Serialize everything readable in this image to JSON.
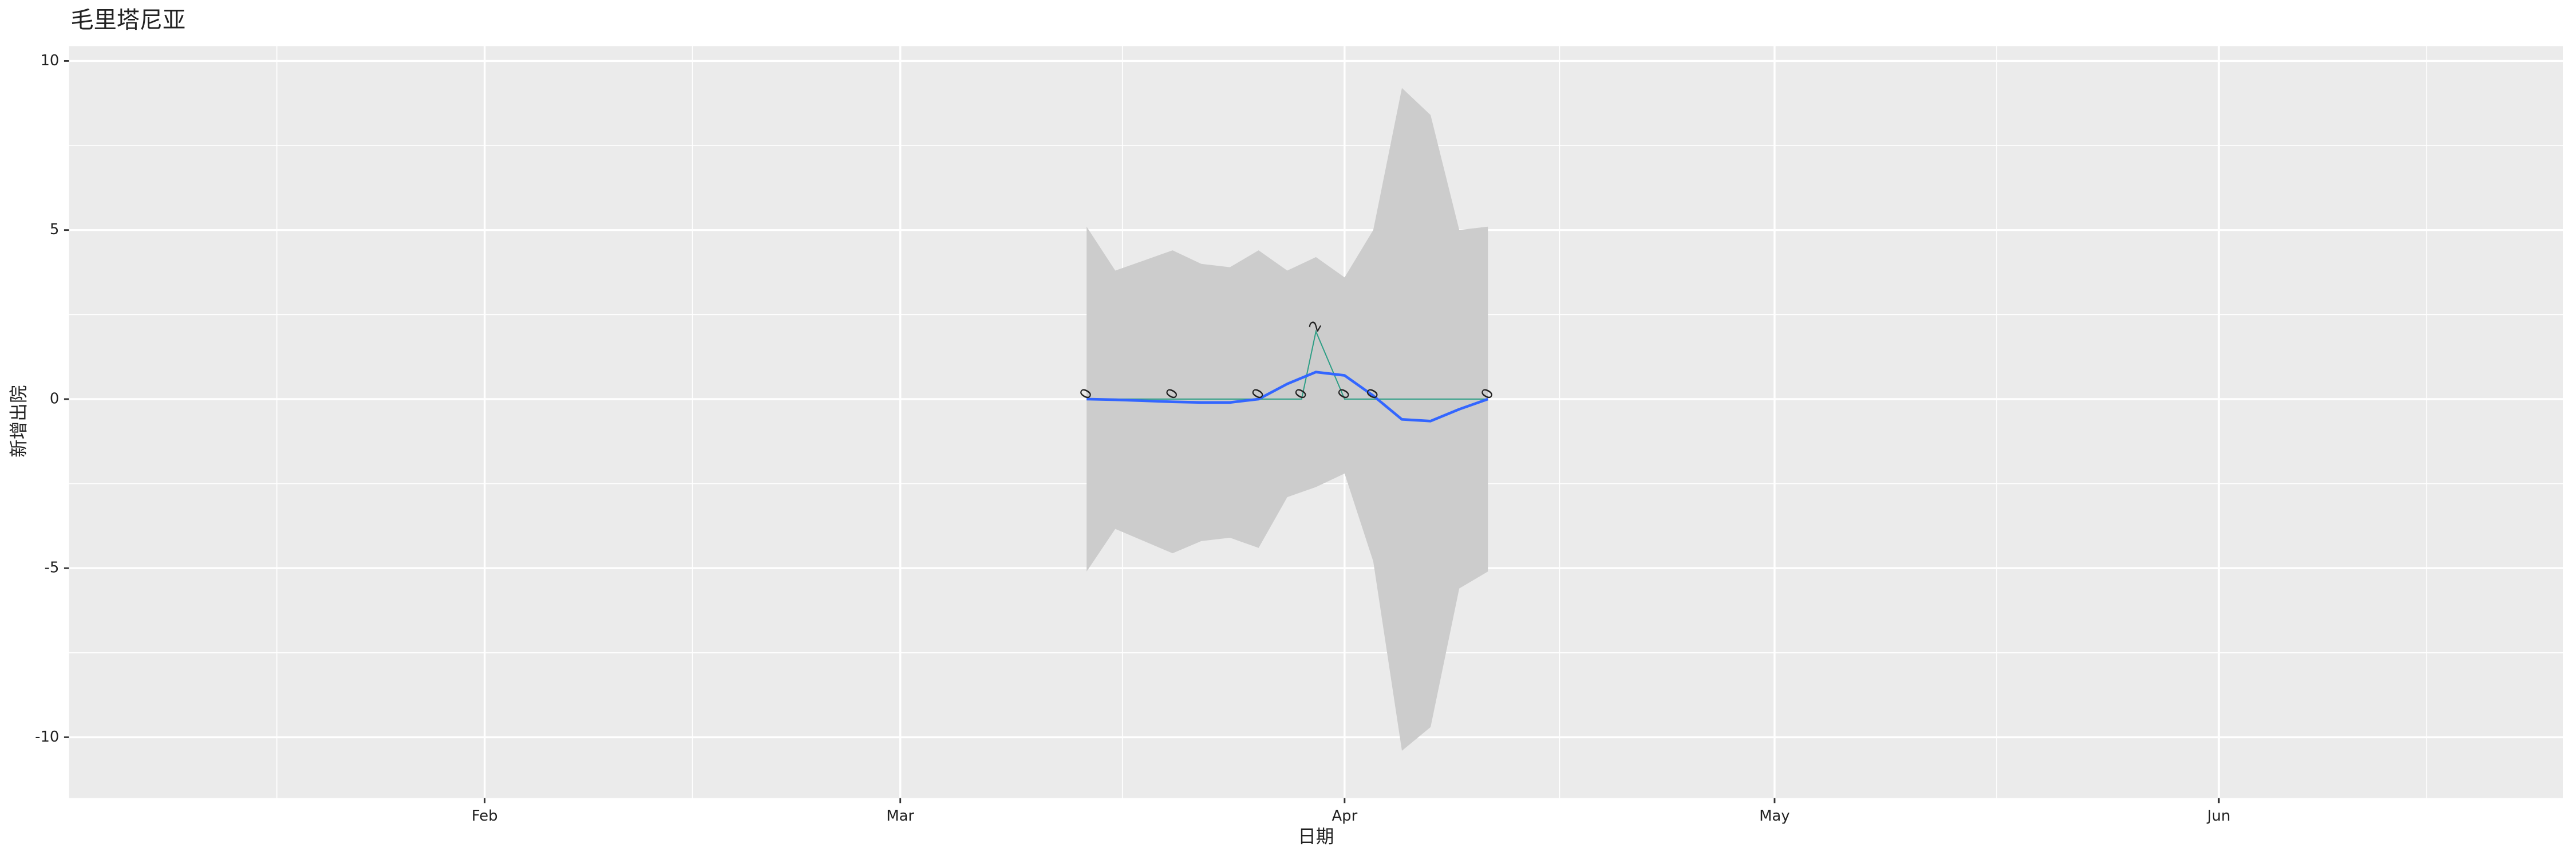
{
  "chart_data": {
    "type": "line",
    "title": "毛里塔尼亚",
    "xlabel": "日期",
    "ylabel": "新增出院",
    "xlim": [
      "01-03",
      "06-25"
    ],
    "xticks": [
      {
        "value": "02-01",
        "label": "Feb"
      },
      {
        "value": "03-01",
        "label": "Mar"
      },
      {
        "value": "04-01",
        "label": "Apr"
      },
      {
        "value": "05-01",
        "label": "May"
      },
      {
        "value": "06-01",
        "label": "Jun"
      }
    ],
    "ylim": [
      -11.8,
      10.44
    ],
    "yticks": [
      -10,
      -5,
      0,
      5,
      10
    ],
    "grid": true,
    "points": {
      "color": "#2e9e85",
      "x": [
        "03-14",
        "03-20",
        "03-26",
        "03-29",
        "03-30",
        "04-01",
        "04-03",
        "04-11"
      ],
      "values": [
        0,
        0,
        0,
        0,
        2,
        0,
        0,
        0
      ]
    },
    "smooth": {
      "color": "#3366ff",
      "band_color": "#cccccc",
      "x": [
        "03-14",
        "03-16",
        "03-18",
        "03-20",
        "03-22",
        "03-24",
        "03-26",
        "03-28",
        "03-30",
        "04-01",
        "04-03",
        "04-05",
        "04-07",
        "04-09",
        "04-11"
      ],
      "values": [
        0,
        -0.02,
        -0.05,
        -0.08,
        -0.1,
        -0.1,
        0,
        0.45,
        0.8,
        0.7,
        0.1,
        -0.6,
        -0.65,
        -0.3,
        0
      ],
      "upper": [
        5.1,
        3.8,
        4.1,
        4.4,
        4.0,
        3.9,
        4.4,
        3.8,
        4.2,
        3.6,
        5.0,
        9.2,
        8.4,
        5.0,
        5.1
      ],
      "lower": [
        -5.1,
        -3.84,
        -4.2,
        -4.56,
        -4.2,
        -4.1,
        -4.4,
        -2.9,
        -2.6,
        -2.2,
        -4.8,
        -10.4,
        -9.7,
        -5.6,
        -5.1
      ]
    }
  }
}
